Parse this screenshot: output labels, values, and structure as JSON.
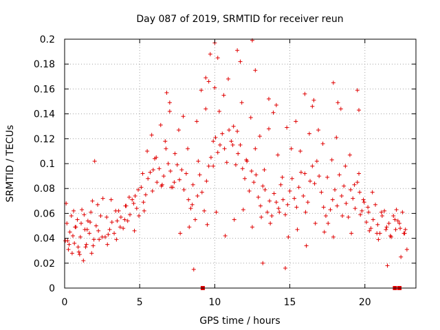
{
  "chart_data": {
    "type": "scatter",
    "title": "Day 087 of 2019, SRMTID for receiver reun",
    "xlabel": "GPS time / hours",
    "ylabel": "SRMTID / TECUs",
    "xlim": [
      0,
      23.4
    ],
    "ylim": [
      0,
      0.2
    ],
    "xticks": [
      0,
      5,
      10,
      15,
      20
    ],
    "xtick_labels": [
      "0",
      "5",
      "10",
      "15",
      "20"
    ],
    "yticks": [
      0,
      0.02,
      0.04,
      0.06,
      0.08,
      0.1,
      0.12,
      0.14,
      0.16,
      0.18,
      0.2
    ],
    "ytick_labels": [
      "0",
      "0.02",
      "0.04",
      "0.06",
      "0.08",
      "0.1",
      "0.12",
      "0.14",
      "0.16",
      "0.18",
      "0.2"
    ],
    "grid": true,
    "marker": "+",
    "color": "#e00000",
    "series": [
      {
        "name": "SRMTID",
        "x": [
          0.05,
          0.15,
          0.25,
          0.35,
          0.45,
          0.55,
          0.65,
          0.75,
          0.85,
          0.95,
          1.05,
          1.15,
          1.25,
          1.35,
          1.45,
          1.55,
          1.65,
          1.75,
          1.85,
          1.95,
          2.1,
          2.25,
          2.4,
          2.55,
          2.7,
          2.85,
          3.0,
          3.15,
          3.3,
          3.45,
          3.6,
          3.75,
          3.9,
          4.05,
          4.2,
          4.35,
          4.5,
          4.65,
          4.8,
          4.95,
          5.1,
          5.25,
          5.4,
          5.55,
          5.7,
          5.85,
          6.0,
          6.15,
          6.3,
          6.45,
          6.6,
          6.75,
          6.9,
          7.05,
          7.2,
          7.35,
          7.5,
          7.65,
          7.8,
          7.95,
          8.1,
          8.25,
          8.4,
          8.55,
          8.7,
          8.85,
          9.0,
          9.15,
          9.3,
          9.45,
          9.6,
          9.75,
          9.9,
          10.05,
          10.2,
          10.35,
          10.5,
          10.65,
          10.8,
          10.95,
          11.1,
          11.25,
          11.4,
          11.55,
          11.7,
          11.85,
          12.0,
          12.15,
          12.3,
          12.45,
          12.6,
          12.75,
          12.9,
          13.05,
          13.2,
          13.35,
          13.5,
          13.65,
          13.8,
          13.95,
          14.1,
          14.25,
          14.4,
          14.55,
          14.7,
          14.85,
          15.0,
          15.15,
          15.3,
          15.45,
          15.6,
          15.75,
          15.9,
          16.05,
          16.2,
          16.35,
          16.5,
          16.65,
          16.8,
          16.95,
          17.1,
          17.25,
          17.4,
          17.55,
          17.7,
          17.85,
          18.0,
          18.15,
          18.3,
          18.45,
          18.6,
          18.75,
          18.9,
          19.05,
          19.2,
          19.35,
          19.5,
          19.65,
          19.8,
          19.95,
          20.1,
          20.25,
          20.4,
          20.55,
          20.7,
          20.85,
          21.0,
          21.15,
          21.3,
          21.45,
          21.6,
          21.75,
          21.9,
          22.05,
          22.2,
          22.35,
          22.5,
          22.65,
          22.8,
          0.1,
          0.3,
          0.5,
          0.7,
          0.9,
          1.1,
          1.3,
          1.5,
          1.7,
          1.9,
          2.2,
          2.5,
          2.8,
          3.1,
          3.4,
          3.7,
          4.0,
          4.3,
          4.6,
          4.9,
          5.2,
          5.5,
          5.8,
          6.1,
          6.4,
          6.7,
          7.0,
          7.3,
          7.6,
          7.9,
          8.2,
          8.5,
          8.8,
          9.1,
          9.4,
          9.7,
          10.0,
          10.3,
          10.6,
          10.9,
          11.2,
          11.5,
          11.8,
          12.1,
          12.4,
          12.7,
          13.0,
          13.3,
          13.6,
          13.9,
          14.2,
          14.5,
          14.8,
          15.1,
          15.4,
          15.7,
          16.0,
          16.3,
          16.6,
          16.9,
          17.2,
          17.5,
          17.8,
          18.1,
          18.4,
          18.7,
          19.0,
          19.3,
          19.6,
          19.9,
          20.2,
          20.5,
          20.8,
          21.1,
          21.4,
          21.7,
          22.0,
          22.3,
          22.6,
          0.2,
          0.6,
          1.0,
          1.4,
          1.8,
          2.3,
          2.9,
          3.5,
          4.1,
          4.7,
          5.3,
          5.9,
          6.5,
          7.1,
          7.7,
          8.3,
          8.9,
          9.5,
          10.1,
          10.7,
          11.3,
          11.9,
          12.5,
          13.1,
          13.7,
          14.3,
          14.9,
          15.5,
          16.1,
          16.7,
          17.3,
          17.9,
          18.5,
          19.1,
          19.7,
          20.3,
          20.9,
          21.5,
          22.1,
          22.7,
          6.8,
          7.0,
          9.4,
          9.6,
          10.0,
          10.2,
          11.5,
          11.7,
          12.5,
          12.7,
          13.6,
          14.1,
          16.0,
          16.5,
          17.9,
          18.2,
          19.5,
          19.6,
          2.0,
          8.6,
          9.9,
          13.2,
          14.7,
          22.4
        ],
        "y": [
          0.038,
          0.052,
          0.031,
          0.045,
          0.058,
          0.042,
          0.036,
          0.049,
          0.055,
          0.029,
          0.041,
          0.063,
          0.022,
          0.047,
          0.035,
          0.054,
          0.044,
          0.061,
          0.07,
          0.039,
          0.05,
          0.046,
          0.058,
          0.072,
          0.041,
          0.035,
          0.047,
          0.053,
          0.044,
          0.039,
          0.062,
          0.057,
          0.048,
          0.066,
          0.054,
          0.059,
          0.071,
          0.046,
          0.064,
          0.058,
          0.081,
          0.069,
          0.075,
          0.088,
          0.093,
          0.078,
          0.104,
          0.085,
          0.096,
          0.082,
          0.09,
          0.112,
          0.1,
          0.094,
          0.081,
          0.108,
          0.099,
          0.087,
          0.095,
          0.079,
          0.092,
          0.071,
          0.064,
          0.083,
          0.055,
          0.074,
          0.091,
          0.077,
          0.062,
          0.086,
          0.098,
          0.105,
          0.118,
          0.121,
          0.109,
          0.115,
          0.124,
          0.112,
          0.101,
          0.127,
          0.118,
          0.13,
          0.099,
          0.108,
          0.115,
          0.096,
          0.088,
          0.102,
          0.078,
          0.094,
          0.085,
          0.091,
          0.073,
          0.066,
          0.082,
          0.079,
          0.061,
          0.07,
          0.058,
          0.076,
          0.069,
          0.064,
          0.083,
          0.071,
          0.059,
          0.067,
          0.078,
          0.088,
          0.072,
          0.065,
          0.081,
          0.093,
          0.074,
          0.061,
          0.069,
          0.086,
          0.098,
          0.084,
          0.102,
          0.09,
          0.077,
          0.065,
          0.058,
          0.052,
          0.063,
          0.071,
          0.079,
          0.066,
          0.091,
          0.074,
          0.082,
          0.068,
          0.057,
          0.079,
          0.072,
          0.064,
          0.085,
          0.077,
          0.062,
          0.069,
          0.053,
          0.061,
          0.048,
          0.055,
          0.067,
          0.051,
          0.044,
          0.058,
          0.062,
          0.049,
          0.052,
          0.041,
          0.058,
          0.047,
          0.054,
          0.048,
          0.061,
          0.044,
          0.031,
          0.068,
          0.035,
          0.028,
          0.049,
          0.033,
          0.052,
          0.059,
          0.047,
          0.053,
          0.034,
          0.067,
          0.041,
          0.057,
          0.071,
          0.062,
          0.049,
          0.055,
          0.073,
          0.068,
          0.079,
          0.092,
          0.11,
          0.123,
          0.105,
          0.131,
          0.118,
          0.142,
          0.085,
          0.127,
          0.138,
          0.112,
          0.067,
          0.134,
          0.159,
          0.144,
          0.188,
          0.161,
          0.142,
          0.155,
          0.168,
          0.115,
          0.126,
          0.149,
          0.103,
          0.137,
          0.112,
          0.122,
          0.095,
          0.128,
          0.141,
          0.107,
          0.089,
          0.129,
          0.112,
          0.134,
          0.11,
          0.092,
          0.124,
          0.151,
          0.127,
          0.116,
          0.089,
          0.103,
          0.121,
          0.144,
          0.098,
          0.107,
          0.083,
          0.092,
          0.071,
          0.065,
          0.077,
          0.044,
          0.061,
          0.047,
          0.042,
          0.055,
          0.052,
          0.044,
          0.038,
          0.062,
          0.027,
          0.033,
          0.028,
          0.039,
          0.043,
          0.054,
          0.066,
          0.074,
          0.062,
          0.095,
          0.083,
          0.081,
          0.044,
          0.049,
          0.102,
          0.051,
          0.061,
          0.042,
          0.055,
          0.063,
          0.049,
          0.057,
          0.052,
          0.061,
          0.041,
          0.047,
          0.034,
          0.052,
          0.045,
          0.041,
          0.058,
          0.044,
          0.059,
          0.046,
          0.039,
          0.018,
          0.063,
          0.047,
          0.157,
          0.149,
          0.169,
          0.166,
          0.197,
          0.185,
          0.191,
          0.182,
          0.199,
          0.175,
          0.152,
          0.147,
          0.156,
          0.146,
          0.165,
          0.149,
          0.159,
          0.143,
          0.102,
          0.015,
          0.098,
          0.02,
          0.016,
          0.025
        ]
      }
    ],
    "zero_markers": [
      9.2,
      22.0,
      22.3
    ]
  }
}
